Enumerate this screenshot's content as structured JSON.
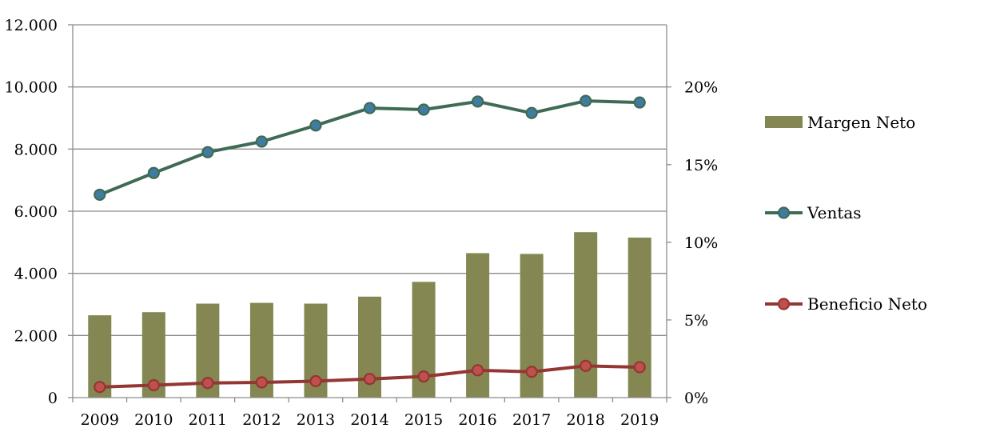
{
  "chart_data": {
    "type": "bar",
    "title": "",
    "xlabel": "",
    "ylabel": "",
    "categories": [
      "2009",
      "2010",
      "2011",
      "2012",
      "2013",
      "2014",
      "2015",
      "2016",
      "2017",
      "2018",
      "2019"
    ],
    "ylim": [
      0,
      12000
    ],
    "y2lim": [
      0,
      0.24
    ],
    "y_ticks": [
      0,
      2000,
      4000,
      6000,
      8000,
      10000,
      12000
    ],
    "y_tick_labels": [
      "0",
      "2.000",
      "4.000",
      "6.000",
      "8.000",
      "10.000",
      "12.000"
    ],
    "y2_ticks": [
      0,
      0.05,
      0.1,
      0.15,
      0.2
    ],
    "y2_tick_labels": [
      "0%",
      "5%",
      "10%",
      "15%",
      "20%"
    ],
    "grid": true,
    "legend_position": "right",
    "series": [
      {
        "name": "Margen Neto",
        "type": "bar",
        "axis": "right",
        "color": "#848751",
        "values": [
          0.053,
          0.055,
          0.0605,
          0.061,
          0.0605,
          0.065,
          0.0745,
          0.093,
          0.0925,
          0.1065,
          0.103
        ]
      },
      {
        "name": "Ventas",
        "type": "line",
        "axis": "left",
        "color": "#3F6B56",
        "marker_color": "#3F7CA0",
        "values": [
          6530,
          7230,
          7900,
          8240,
          8760,
          9320,
          9270,
          9530,
          9160,
          9550,
          9500
        ]
      },
      {
        "name": "Beneficio Neto",
        "type": "line",
        "axis": "left",
        "color": "#943634",
        "marker_color": "#C0504D",
        "values": [
          340,
          400,
          470,
          490,
          530,
          600,
          680,
          880,
          830,
          1020,
          980
        ]
      }
    ]
  }
}
